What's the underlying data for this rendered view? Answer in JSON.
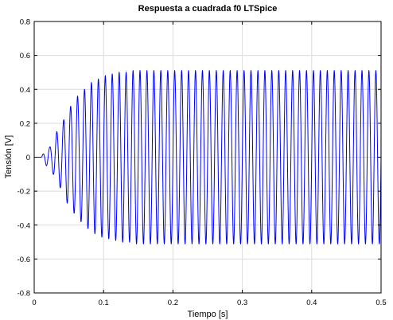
{
  "chart_data": {
    "type": "line",
    "title": "Respuesta a cuadrada f0 LTSpice",
    "xlabel": "Tiempo [s]",
    "ylabel": "Tensión [V]",
    "xlim": [
      0,
      0.5
    ],
    "ylim": [
      -0.8,
      0.8
    ],
    "x_ticks": [
      "0",
      "0.1",
      "0.2",
      "0.3",
      "0.4",
      "0.5"
    ],
    "y_ticks": [
      "-0.8",
      "-0.6",
      "-0.4",
      "-0.2",
      "0",
      "0.2",
      "0.4",
      "0.6",
      "0.8"
    ],
    "grid": true,
    "legend": "none",
    "series": [
      {
        "color": "#0000ff",
        "description": "sinusoid at ~100 Hz whose amplitude grows from 0 at t≈0.01 s and saturates near 0.51 V by t≈0.13 s",
        "frequency_hz": 100,
        "start_time_s": 0.01,
        "steady_amplitude_v": 0.51,
        "peaks": [
          {
            "x": 0.0175,
            "y": 0.05
          },
          {
            "x": 0.0225,
            "y": -0.06
          },
          {
            "x": 0.0275,
            "y": 0.1
          },
          {
            "x": 0.0325,
            "y": -0.15
          },
          {
            "x": 0.0375,
            "y": 0.18
          },
          {
            "x": 0.0425,
            "y": -0.22
          },
          {
            "x": 0.0475,
            "y": 0.27
          },
          {
            "x": 0.0525,
            "y": -0.3
          },
          {
            "x": 0.0575,
            "y": 0.33
          },
          {
            "x": 0.0625,
            "y": -0.36
          },
          {
            "x": 0.0675,
            "y": 0.38
          },
          {
            "x": 0.0725,
            "y": -0.4
          },
          {
            "x": 0.0775,
            "y": 0.42
          },
          {
            "x": 0.0825,
            "y": -0.44
          },
          {
            "x": 0.0875,
            "y": 0.45
          },
          {
            "x": 0.0925,
            "y": -0.46
          },
          {
            "x": 0.0975,
            "y": 0.47
          },
          {
            "x": 0.1025,
            "y": -0.48
          },
          {
            "x": 0.1075,
            "y": 0.48
          },
          {
            "x": 0.1125,
            "y": -0.49
          },
          {
            "x": 0.1175,
            "y": 0.49
          },
          {
            "x": 0.1225,
            "y": -0.5
          },
          {
            "x": 0.1275,
            "y": 0.5
          },
          {
            "x": 0.1325,
            "y": -0.5
          },
          {
            "x": 0.2,
            "y": 0.5
          },
          {
            "x": 0.3,
            "y": 0.51
          },
          {
            "x": 0.4,
            "y": 0.51
          },
          {
            "x": 0.5,
            "y": 0.22
          }
        ]
      }
    ]
  }
}
